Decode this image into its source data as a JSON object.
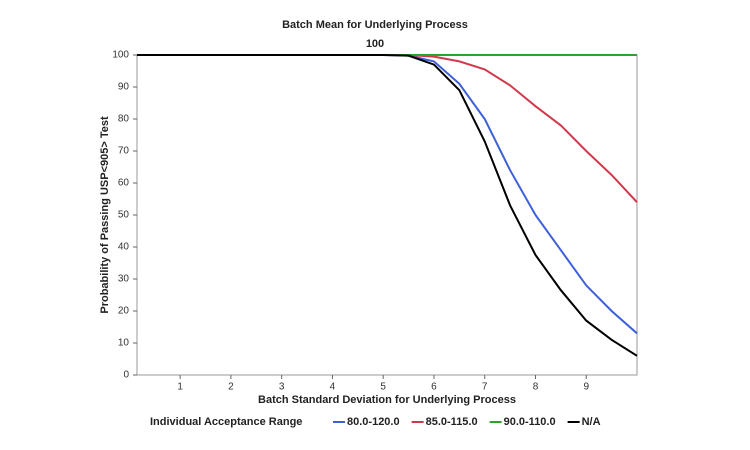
{
  "chart_data": {
    "type": "line",
    "title": "Batch Mean for Underlying Process",
    "subtitle": "100",
    "x_label": "Batch Standard Deviation for Underlying Process",
    "y_label": "Probability of Passing USP<905> Test",
    "legend_title": "Individual Acceptance Range",
    "x": [
      0.15,
      1,
      2,
      3,
      4,
      5,
      5.5,
      6,
      6.5,
      7,
      7.5,
      8,
      8.5,
      9,
      9.5,
      10
    ],
    "series": [
      {
        "name": "80.0-120.0",
        "color": "#3d5fd9",
        "values": [
          100,
          100,
          100,
          100,
          100,
          100,
          99.8,
          98,
          91,
          80,
          64,
          50,
          39,
          28,
          20,
          13
        ]
      },
      {
        "name": "85.0-115.0",
        "color": "#d03a4c",
        "values": [
          100,
          100,
          100,
          100,
          100,
          100,
          100,
          99.5,
          98,
          95.5,
          90.5,
          84,
          78,
          70,
          62.5,
          54
        ]
      },
      {
        "name": "90.0-110.0",
        "color": "#2ea02e",
        "values": [
          100,
          100,
          100,
          100,
          100,
          100,
          100,
          100,
          100,
          100,
          100,
          100,
          100,
          100,
          100,
          100
        ]
      },
      {
        "name": "N/A",
        "color": "#000000",
        "values": [
          100,
          100,
          100,
          100,
          100,
          100,
          99.8,
          97,
          89,
          73,
          53,
          37.5,
          26.5,
          17,
          11,
          6
        ]
      }
    ],
    "xlim": [
      0.15,
      10
    ],
    "xticks": [
      1,
      2,
      3,
      4,
      5,
      6,
      7,
      8,
      9
    ],
    "ylim": [
      0,
      100
    ],
    "yticks": [
      0,
      10,
      20,
      30,
      40,
      50,
      60,
      70,
      80,
      90,
      100
    ],
    "grid": false,
    "legend_position": "bottom"
  }
}
